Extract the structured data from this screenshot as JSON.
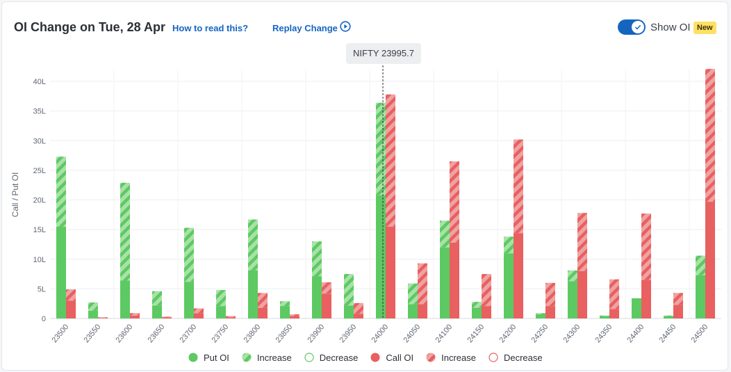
{
  "header": {
    "title": "OI Change on Tue, 28 Apr",
    "how_to_read": "How to read this?",
    "replay": "Replay Change",
    "show_oi": "Show OI",
    "new_badge": "New",
    "show_oi_enabled": true
  },
  "tooltip": {
    "nifty": "NIFTY 23995.7"
  },
  "colors": {
    "put": "#5dc962",
    "put_light": "#a8e2a8",
    "call": "#e86060",
    "call_light": "#f0a2a2"
  },
  "icons": {
    "replay": "play-circle-icon",
    "toggle_knob": "check-icon"
  },
  "legend": [
    {
      "key": "put_oi",
      "label": "Put OI"
    },
    {
      "key": "put_increase",
      "label": "Increase"
    },
    {
      "key": "put_decrease",
      "label": "Decrease"
    },
    {
      "key": "call_oi",
      "label": "Call OI"
    },
    {
      "key": "call_increase",
      "label": "Increase"
    },
    {
      "key": "call_decrease",
      "label": "Decrease"
    }
  ],
  "chart_data": {
    "type": "bar",
    "ylabel": "Call / Put OI",
    "unit": "L",
    "ylim": [
      0,
      42
    ],
    "yticks": [
      "0",
      "5L",
      "10L",
      "15L",
      "20L",
      "25L",
      "30L",
      "35L",
      "40L"
    ],
    "ytick_values": [
      0,
      5,
      10,
      15,
      20,
      25,
      30,
      35,
      40
    ],
    "grid": true,
    "spot_marker": {
      "label": "NIFTY 23995.7",
      "value": 23995.7
    },
    "categories": [
      "23500",
      "23550",
      "23600",
      "23650",
      "23700",
      "23750",
      "23800",
      "23850",
      "23900",
      "23950",
      "24000",
      "24050",
      "24100",
      "24150",
      "24200",
      "24250",
      "24300",
      "24350",
      "24400",
      "24450",
      "24500"
    ],
    "series": [
      {
        "name": "Put OI",
        "values": [
          15.5,
          1.3,
          6.4,
          2.2,
          6.2,
          2.1,
          8.1,
          2.1,
          7.1,
          2.2,
          20.8,
          2.4,
          12.0,
          1.8,
          11.0,
          0.7,
          6.3,
          0.4,
          3.4,
          0.4,
          7.3
        ]
      },
      {
        "name": "Increase",
        "values": [
          11.8,
          1.4,
          16.5,
          2.4,
          9.1,
          2.7,
          8.6,
          0.8,
          5.9,
          5.3,
          15.6,
          3.5,
          4.5,
          1.0,
          2.8,
          0.2,
          1.8,
          0.1,
          0.0,
          0.1,
          3.3
        ]
      },
      {
        "name": "Call OI",
        "values": [
          3.0,
          0.1,
          0.5,
          0.2,
          0.9,
          0.2,
          1.8,
          0.4,
          4.2,
          0.8,
          15.5,
          2.4,
          12.8,
          2.1,
          14.4,
          2.1,
          8.0,
          1.6,
          6.5,
          2.3,
          19.7
        ]
      },
      {
        "name": "Increase",
        "values": [
          1.9,
          0.1,
          0.4,
          0.1,
          0.8,
          0.2,
          2.5,
          0.3,
          1.9,
          1.8,
          22.3,
          6.9,
          13.7,
          5.4,
          15.8,
          3.9,
          9.8,
          5.0,
          11.2,
          2.0,
          22.4
        ]
      }
    ]
  }
}
